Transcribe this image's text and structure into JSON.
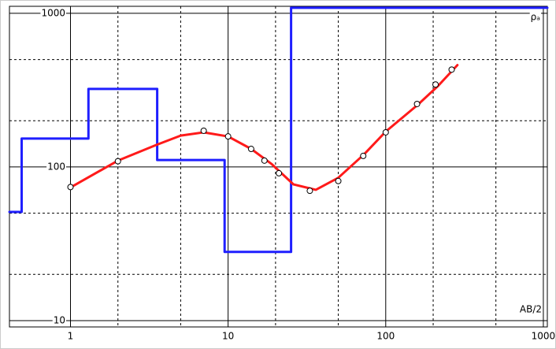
{
  "chart_data": {
    "type": "line",
    "x_label": "AB/2",
    "y_label": "ρₐ",
    "log_x": true,
    "log_y": true,
    "grid": true,
    "xlim": [
      0.41,
      1060
    ],
    "ylim": [
      9.1,
      1110
    ],
    "xticks": [
      1,
      10,
      100,
      1000
    ],
    "yticks": [
      10,
      100,
      1000
    ],
    "x_minor_ticks": [
      2,
      5,
      20,
      50,
      200,
      500
    ],
    "y_minor_ticks": [
      20,
      50,
      200,
      500
    ],
    "series": [
      {
        "color": "#1f1fff",
        "style": "line",
        "width": 3,
        "x": [
          0.41,
          0.49,
          0.49,
          1.3,
          1.3,
          3.55,
          3.55,
          9.5,
          9.5,
          25.1,
          25.1,
          1060
        ],
        "values": [
          51,
          51,
          153,
          153,
          322,
          322,
          111,
          111,
          28,
          28,
          1086,
          1086
        ]
      },
      {
        "color": "#ff1a1a",
        "style": "line",
        "width": 3,
        "x": [
          1,
          2,
          3.5,
          5,
          7,
          10,
          14,
          19,
          26,
          36,
          50,
          73,
          100,
          160,
          215,
          285
        ],
        "values": [
          73.6,
          110,
          139,
          160,
          168,
          158,
          131,
          104,
          77,
          71,
          85,
          121,
          170,
          254,
          337,
          460
        ]
      },
      {
        "color": "#000000",
        "style": "markers",
        "x": [
          1,
          2,
          7,
          10,
          14,
          17,
          21,
          33,
          50,
          72,
          100,
          158,
          207,
          262
        ],
        "values": [
          74,
          109,
          172,
          158,
          131,
          110,
          91,
          70,
          81,
          118,
          168,
          257,
          344,
          430
        ]
      }
    ]
  }
}
